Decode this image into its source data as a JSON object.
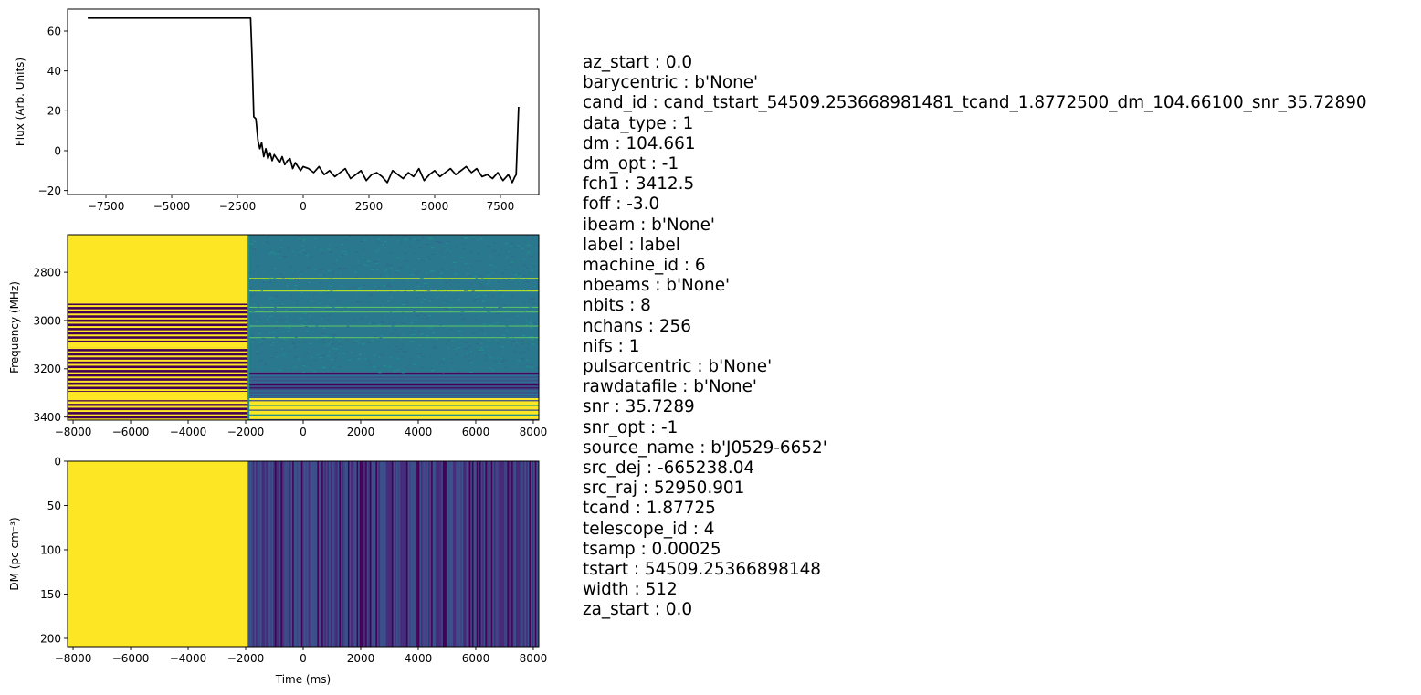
{
  "chart_data": [
    {
      "type": "line",
      "xlabel": "",
      "ylabel": "Flux (Arb. Units)",
      "xlim": [
        -8960,
        8960
      ],
      "ylim": [
        -22,
        71
      ],
      "xticks": [
        "−7500",
        "−5000",
        "−2500",
        "0",
        "2500",
        "5000",
        "7500"
      ],
      "xtick_values": [
        -7500,
        -5000,
        -2500,
        0,
        2500,
        5000,
        7500
      ],
      "yticks": [
        "−20",
        "0",
        "20",
        "40",
        "60"
      ],
      "ytick_values": [
        -20,
        0,
        20,
        40,
        60
      ],
      "line_color": "#000000",
      "series": [
        {
          "x": [
            -8192,
            -2000,
            -1950,
            -1880,
            -1800,
            -1720,
            -1650,
            -1580,
            -1500,
            -1420,
            -1340,
            -1260,
            -1180,
            -1100,
            -1000,
            -900,
            -800,
            -700,
            -600,
            -500,
            -400,
            -300,
            -200,
            -100,
            0,
            200,
            400,
            600,
            800,
            1000,
            1200,
            1400,
            1600,
            1800,
            2000,
            2200,
            2400,
            2600,
            2800,
            3000,
            3200,
            3400,
            3600,
            3800,
            4000,
            4200,
            4400,
            4600,
            4800,
            5000,
            5200,
            5400,
            5600,
            5800,
            6000,
            6200,
            6400,
            6600,
            6800,
            7000,
            7200,
            7400,
            7600,
            7800,
            7950,
            8050,
            8100,
            8192
          ],
          "y": [
            66.5,
            66.5,
            48,
            17,
            16,
            5,
            1,
            4,
            -3,
            1,
            -4,
            -1,
            -5,
            -2,
            -4,
            -6,
            -3,
            -7,
            -5,
            -4,
            -9,
            -6,
            -8,
            -10,
            -8,
            -9,
            -11,
            -8,
            -12,
            -10,
            -13,
            -11,
            -9,
            -14,
            -12,
            -10,
            -15,
            -12,
            -11,
            -13,
            -16,
            -10,
            -12,
            -14,
            -11,
            -13,
            -9,
            -15,
            -12,
            -10,
            -13,
            -11,
            -9,
            -12,
            -10,
            -8,
            -11,
            -9,
            -13,
            -12,
            -14,
            -11,
            -15,
            -12,
            -16,
            -13,
            -12,
            22
          ]
        }
      ]
    },
    {
      "type": "heatmap",
      "xlabel": "",
      "ylabel": "Frequency (MHz)",
      "xlim": [
        -8192,
        8192
      ],
      "ylim": [
        3412.5,
        2644.5
      ],
      "xticks": [
        "−8000",
        "−6000",
        "−4000",
        "−2000",
        "0",
        "2000",
        "4000",
        "6000",
        "8000"
      ],
      "xtick_values": [
        -8000,
        -6000,
        -4000,
        -2000,
        0,
        2000,
        4000,
        6000,
        8000
      ],
      "yticks": [
        "2800",
        "3000",
        "3200",
        "3400"
      ],
      "ytick_values": [
        2800,
        3000,
        3200,
        3400
      ],
      "colormap": "viridis",
      "colors": {
        "high": "#fde725",
        "low": "#440154",
        "mid": "#21908d",
        "mid_dark": "#2a788e",
        "dark": "#3b528b"
      },
      "transition_time": -1900,
      "stripes_left": {
        "band_start": 2930,
        "band_end": 3412.5,
        "bright_bands": [
          [
            3090,
            3110
          ],
          [
            3295,
            3330
          ],
          [
            3335,
            3345
          ]
        ]
      },
      "right_lines": [
        2826,
        2876,
        2946,
        2966,
        3024,
        3072
      ],
      "right_low_band": [
        3215,
        3322
      ],
      "right_high_band": [
        3322,
        3412.5
      ]
    },
    {
      "type": "heatmap",
      "xlabel": "Time (ms)",
      "ylabel": "DM (pc cm⁻³)",
      "xlim": [
        -8192,
        8192
      ],
      "ylim": [
        209.3,
        0
      ],
      "xticks": [
        "−8000",
        "−6000",
        "−4000",
        "−2000",
        "0",
        "2000",
        "4000",
        "6000",
        "8000"
      ],
      "xtick_values": [
        -8000,
        -6000,
        -4000,
        -2000,
        0,
        2000,
        4000,
        6000,
        8000
      ],
      "yticks": [
        "0",
        "50",
        "100",
        "150",
        "200"
      ],
      "ytick_values": [
        0,
        50,
        100,
        150,
        200
      ],
      "colormap": "viridis",
      "colors": {
        "high": "#fde725",
        "low": "#440154",
        "mid": "#21908d",
        "dark": "#3b528b"
      },
      "transition_time": -1900
    }
  ],
  "metadata": [
    "az_start : 0.0",
    "barycentric : b'None'",
    "cand_id : cand_tstart_54509.253668981481_tcand_1.8772500_dm_104.66100_snr_35.72890",
    "data_type : 1",
    "dm : 104.661",
    "dm_opt : -1",
    "fch1 : 3412.5",
    "foff : -3.0",
    "ibeam : b'None'",
    "label : label",
    "machine_id : 6",
    "nbeams : b'None'",
    "nbits : 8",
    "nchans : 256",
    "nifs : 1",
    "pulsarcentric : b'None'",
    "rawdatafile : b'None'",
    "snr : 35.7289",
    "snr_opt : -1",
    "source_name : b'J0529-6652'",
    "src_dej : -665238.04",
    "src_raj : 52950.901",
    "tcand : 1.87725",
    "telescope_id : 4",
    "tsamp : 0.00025",
    "tstart : 54509.25366898148",
    "width : 512",
    "za_start : 0.0"
  ]
}
